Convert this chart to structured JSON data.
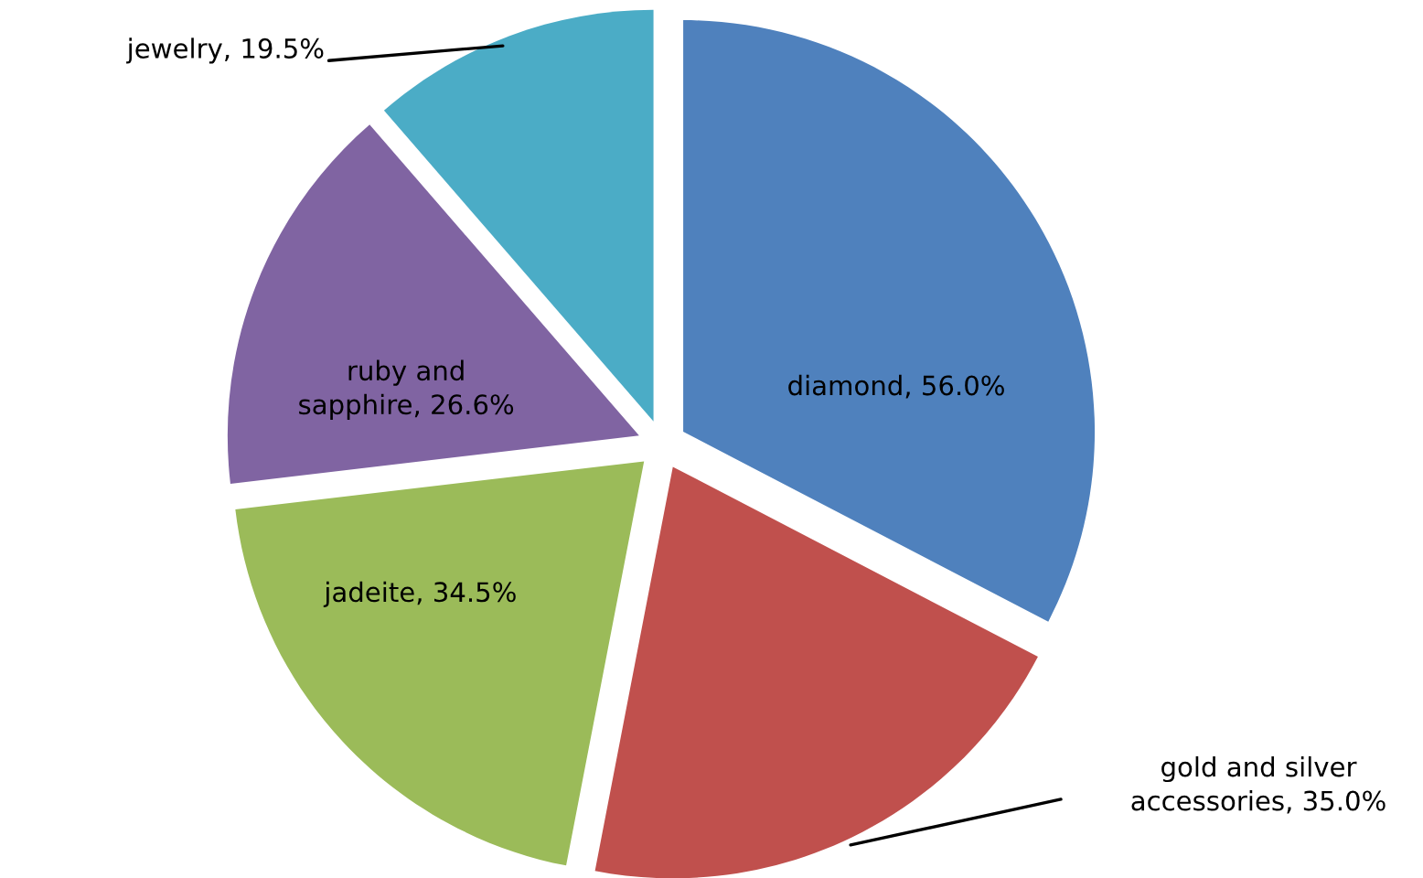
{
  "chart_data": {
    "type": "pie",
    "categories": [
      "diamond, 56.0%",
      "gold and silver accessories, 35.0%",
      "jadeite, 34.5%",
      "ruby and sapphire, 26.6%",
      "jewelry, 19.5%"
    ],
    "values": [
      56.0,
      35.0,
      34.5,
      26.6,
      19.5
    ],
    "colors": [
      "#4f81bd",
      "#c0504d",
      "#9bbb59",
      "#8064a2",
      "#4bacc6"
    ],
    "legend": false
  }
}
